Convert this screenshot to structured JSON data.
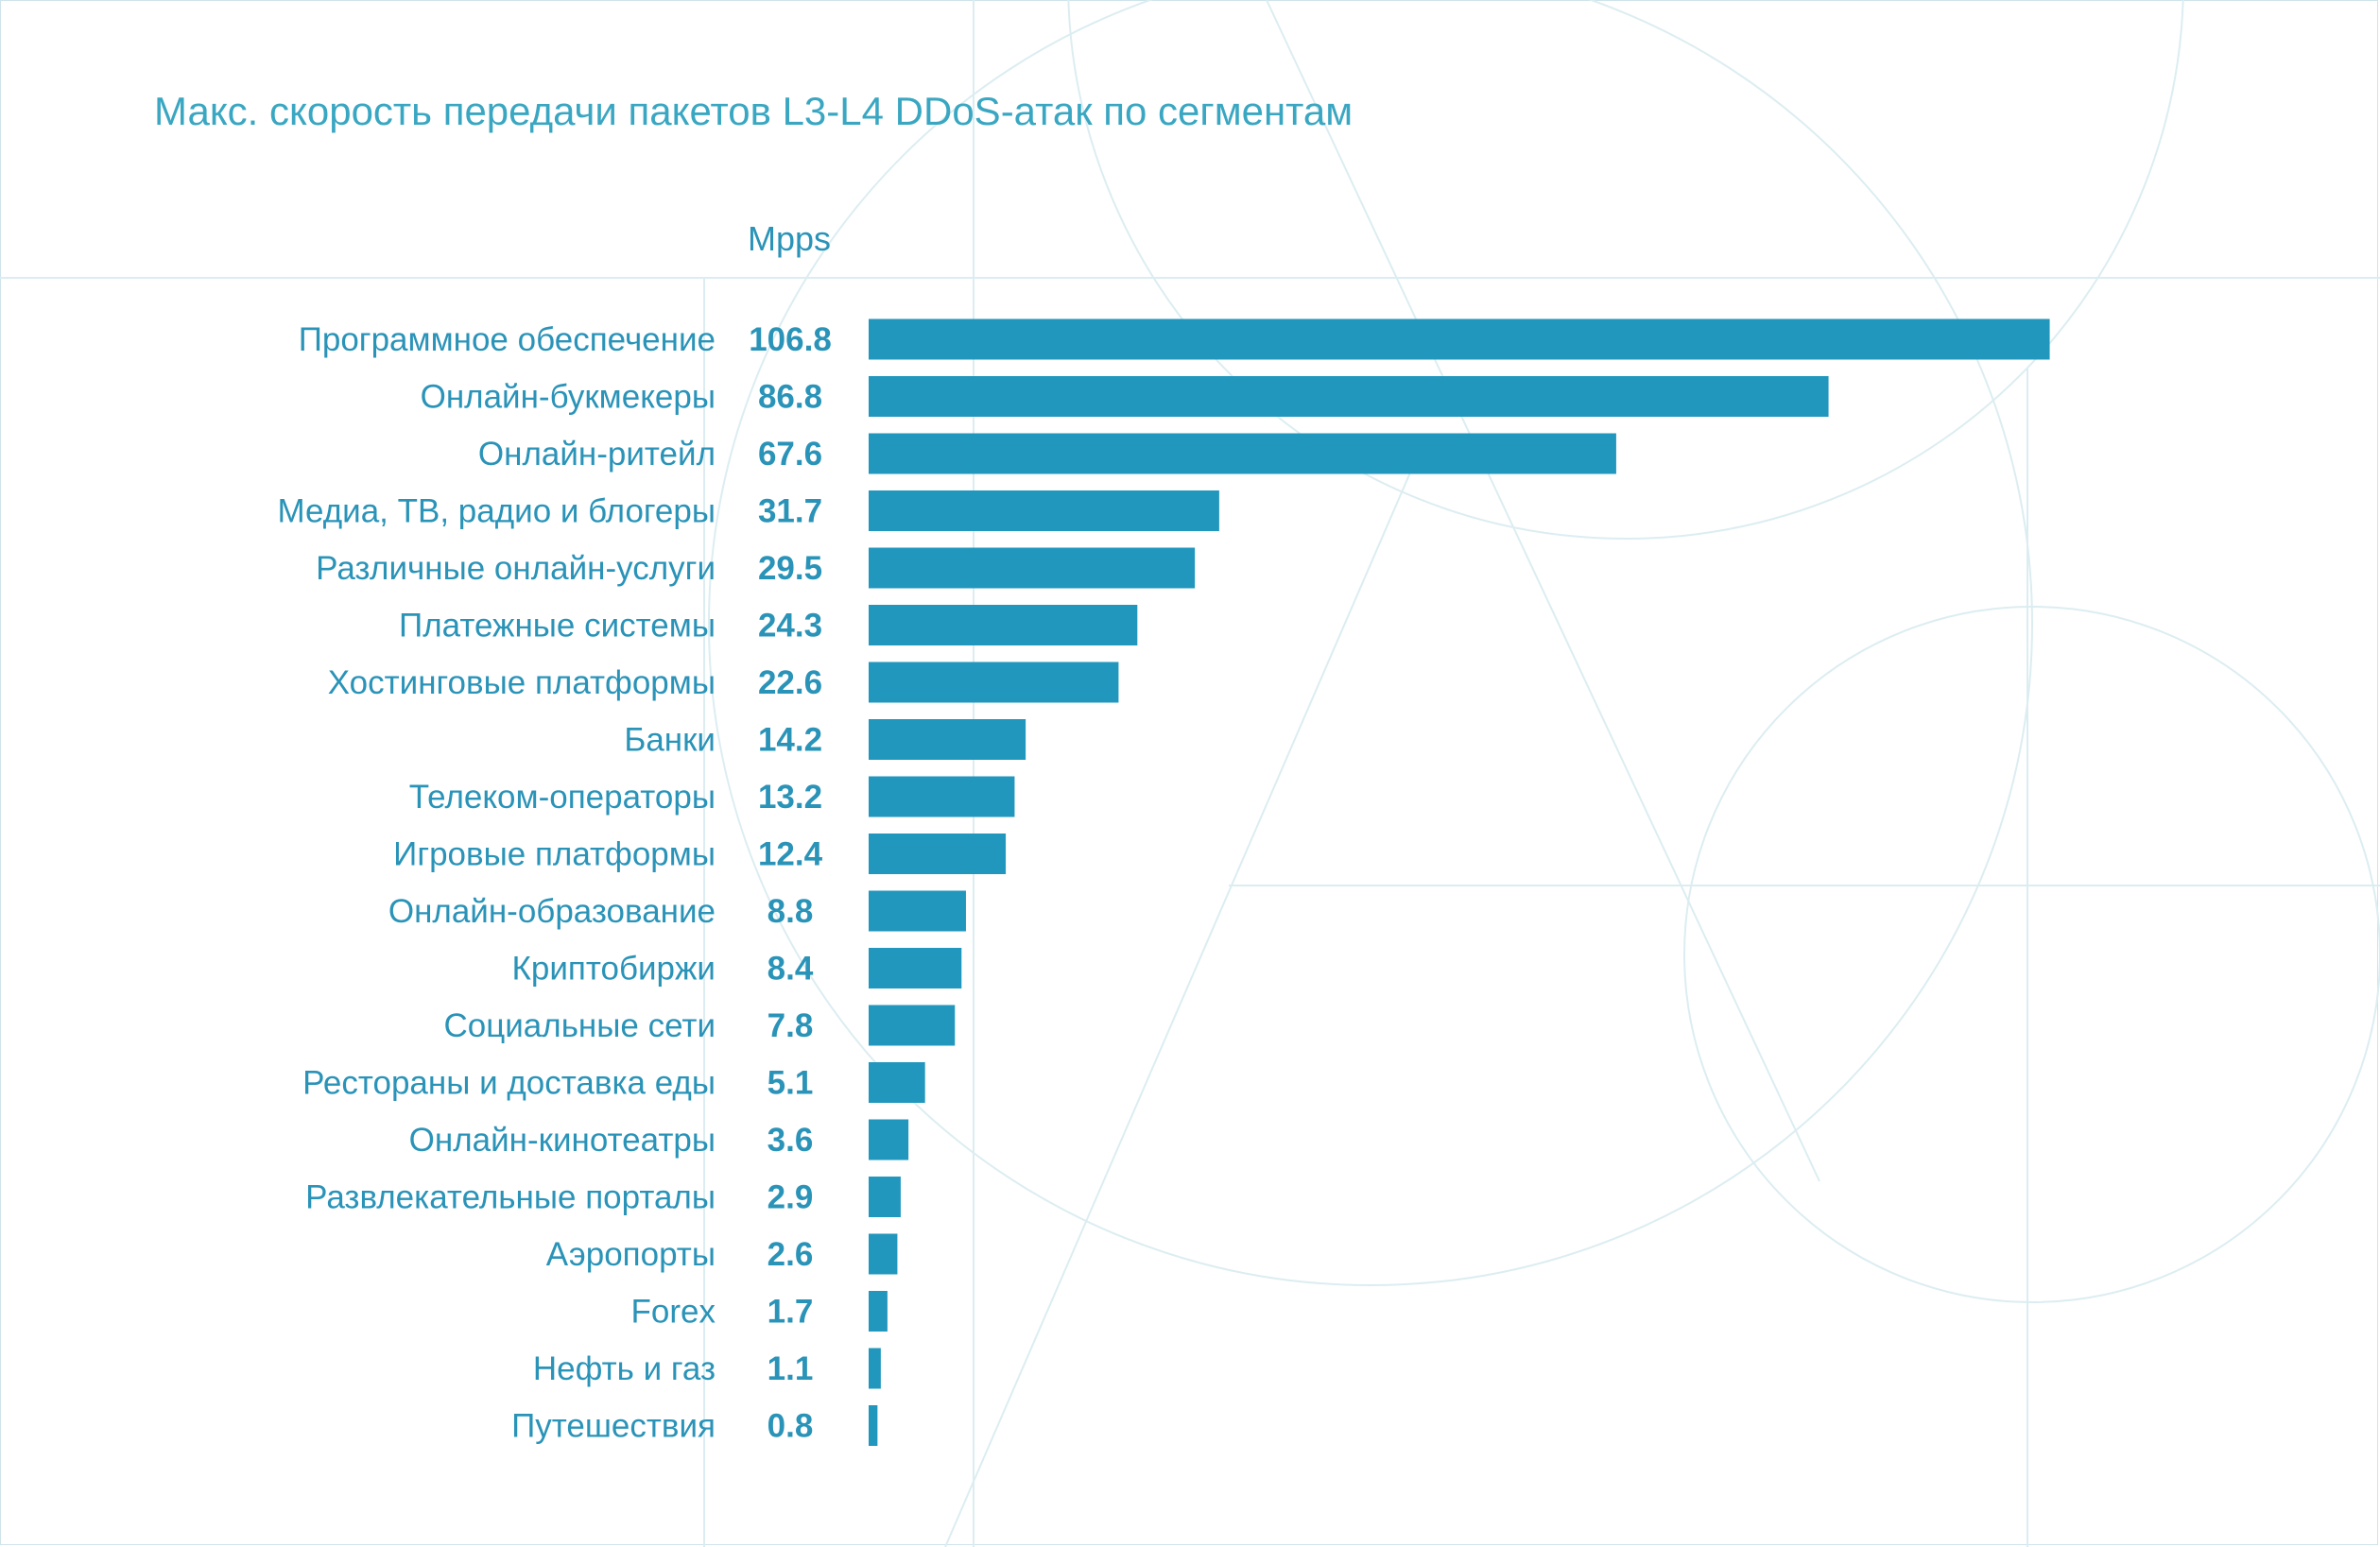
{
  "colors": {
    "bar": "#2297bd",
    "label": "#2a93b8",
    "value": "#2a93b8",
    "title": "#3aa7c2",
    "decor": "#d8edf1"
  },
  "chart_data": {
    "type": "bar",
    "orientation": "horizontal",
    "title": "Макс. скорость передачи пакетов L3-L4 DDoS-атак по сегментам",
    "unit": "Mpps",
    "categories": [
      "Программное обеспечение",
      "Онлайн-букмекеры",
      "Онлайн-ритейл",
      "Медиа, ТВ, радио и блогеры",
      "Различные онлайн-услуги",
      "Платежные системы",
      "Хостинговые платформы",
      "Банки",
      "Телеком-операторы",
      "Игровые платформы",
      "Онлайн-образование",
      "Криптобиржи",
      "Социальные сети",
      "Рестораны и доставка еды",
      "Онлайн-кинотеатры",
      "Развлекательные порталы",
      "Аэропорты",
      "Forex",
      "Нефть и газ",
      "Путешествия"
    ],
    "values": [
      106.8,
      86.8,
      67.6,
      31.7,
      29.5,
      24.3,
      22.6,
      14.2,
      13.2,
      12.4,
      8.8,
      8.4,
      7.8,
      5.1,
      3.6,
      2.9,
      2.6,
      1.7,
      1.1,
      0.8
    ],
    "value_labels": [
      "106.8",
      "86.8",
      "67.6",
      "31.7",
      "29.5",
      "24.3",
      "22.6",
      "14.2",
      "13.2",
      "12.4",
      "8.8",
      "8.4",
      "7.8",
      "5.1",
      "3.6",
      "2.9",
      "2.6",
      "1.7",
      "1.1",
      "0.8"
    ],
    "grid": false,
    "legend": "none"
  }
}
